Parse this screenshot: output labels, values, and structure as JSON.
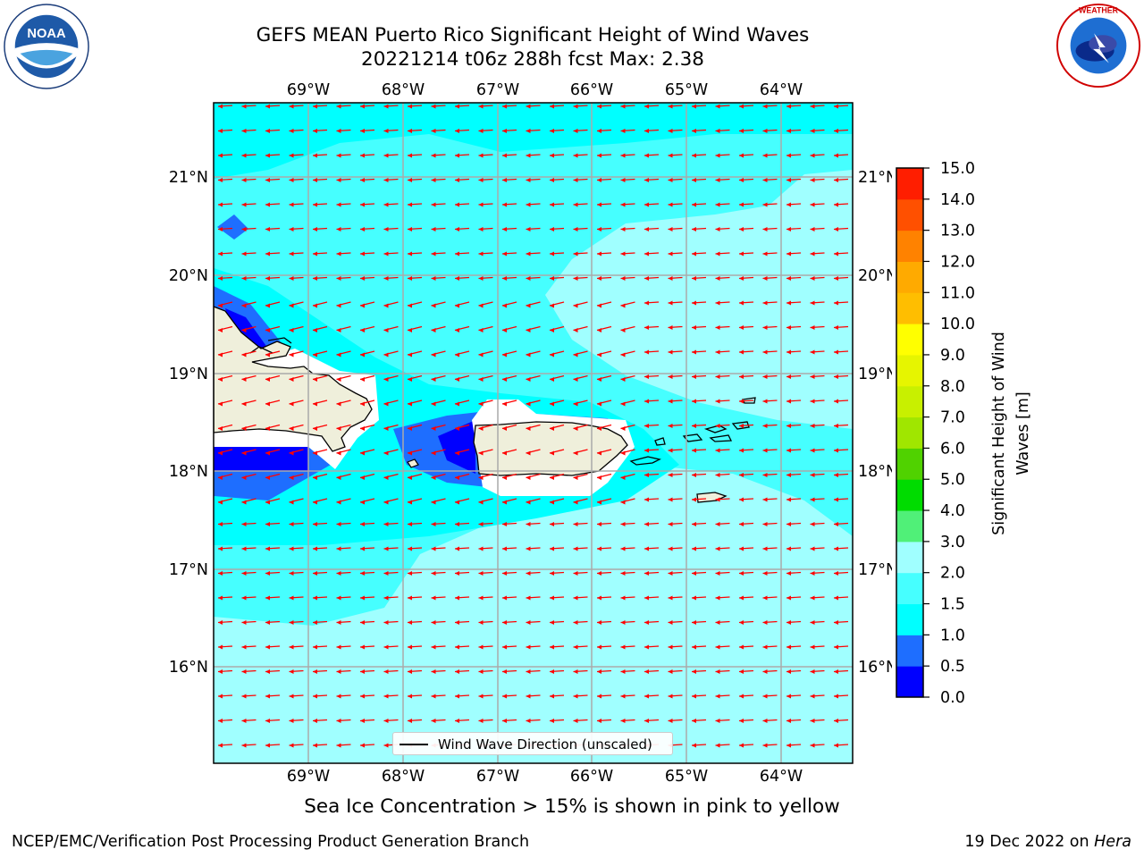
{
  "header": {
    "title_line1": "GEFS MEAN Puerto Rico Significant Height of Wind Waves",
    "title_line2": "20221214 t06z 288h fcst   Max: 2.38"
  },
  "logos": {
    "left": {
      "name": "noaa-logo",
      "text": "NOAA",
      "ring_text": "NATIONAL OCEANIC AND ATMOSPHERIC ADMINISTRATION · U.S. DEPARTMENT OF COMMERCE"
    },
    "right": {
      "name": "nws-logo",
      "ring_text": "NATIONAL WEATHER SERVICE"
    }
  },
  "map": {
    "lon_labels": [
      "69°W",
      "68°W",
      "67°W",
      "66°W",
      "65°W",
      "64°W"
    ],
    "lat_labels": [
      "21°N",
      "20°N",
      "19°N",
      "18°N",
      "17°N",
      "16°N"
    ],
    "arrow_color": "#ff0000",
    "land_color": "#efefdb",
    "wind_direction": "from east (arrows point west)"
  },
  "legend": {
    "label": "Wind Wave Direction (unscaled)"
  },
  "colorbar": {
    "label": "Significant Height of Wind Waves [m]",
    "label_line1": "Significant Height of Wind",
    "label_line2": "Waves [m]",
    "ticks": [
      "15.0",
      "14.0",
      "13.0",
      "12.0",
      "11.0",
      "10.0",
      "9.0",
      "8.0",
      "7.0",
      "6.0",
      "5.0",
      "4.0",
      "3.0",
      "2.0",
      "1.5",
      "1.0",
      "0.5",
      "0.0"
    ],
    "bands": [
      {
        "range": "0.0-0.5",
        "color": "#0000ff"
      },
      {
        "range": "0.5-1.0",
        "color": "#1e6eff"
      },
      {
        "range": "1.0-1.5",
        "color": "#00ffff"
      },
      {
        "range": "1.5-2.0",
        "color": "#46ffff"
      },
      {
        "range": "2.0-3.0",
        "color": "#a0ffff"
      },
      {
        "range": "3.0-4.0",
        "color": "#50f078"
      },
      {
        "range": "4.0-5.0",
        "color": "#00dc00"
      },
      {
        "range": "5.0-6.0",
        "color": "#50d200"
      },
      {
        "range": "6.0-7.0",
        "color": "#a0e600"
      },
      {
        "range": "7.0-8.0",
        "color": "#c8f000"
      },
      {
        "range": "8.0-9.0",
        "color": "#e6f500"
      },
      {
        "range": "9.0-10.0",
        "color": "#ffff00"
      },
      {
        "range": "10.0-11.0",
        "color": "#ffbe00"
      },
      {
        "range": "11.0-12.0",
        "color": "#ffaa00"
      },
      {
        "range": "12.0-13.0",
        "color": "#ff8200"
      },
      {
        "range": "13.0-14.0",
        "color": "#ff5000"
      },
      {
        "range": "14.0-15.0",
        "color": "#ff1e00"
      }
    ]
  },
  "subtitle": "Sea Ice Concentration > 15% is shown in pink to yellow",
  "footer": {
    "left": "NCEP/EMC/Verification Post Processing Product Generation Branch",
    "date": "19 Dec 2022 on ",
    "machine": "Hera"
  }
}
